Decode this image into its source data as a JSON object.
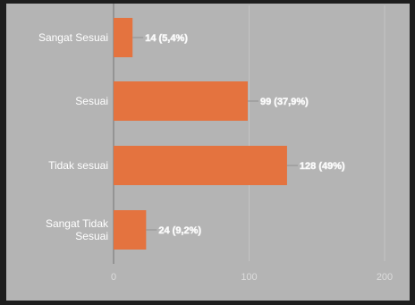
{
  "chart_data": {
    "type": "bar",
    "orientation": "horizontal",
    "categories": [
      "Sangat Sesuai",
      "Sesuai",
      "Tidak sesuai",
      "Sangat Tidak Sesuai"
    ],
    "category_lines": [
      [
        "Sangat Sesuai"
      ],
      [
        "Sesuai"
      ],
      [
        "Tidak sesuai"
      ],
      [
        "Sangat Tidak",
        "Sesuai"
      ]
    ],
    "values": [
      14,
      99,
      128,
      24
    ],
    "data_labels": [
      "14 (5,4%)",
      "99 (37,9%)",
      "128 (49%)",
      "24 (9,2%)"
    ],
    "x_ticks": [
      0,
      100,
      200
    ],
    "xlim": [
      0,
      200
    ],
    "grid": true,
    "colors": {
      "bar": "#e4733f",
      "background": "#b4b4b4",
      "frame": "#1e1e1e",
      "axis": "#8a8a8a",
      "grid": "#c4c4c4"
    }
  }
}
